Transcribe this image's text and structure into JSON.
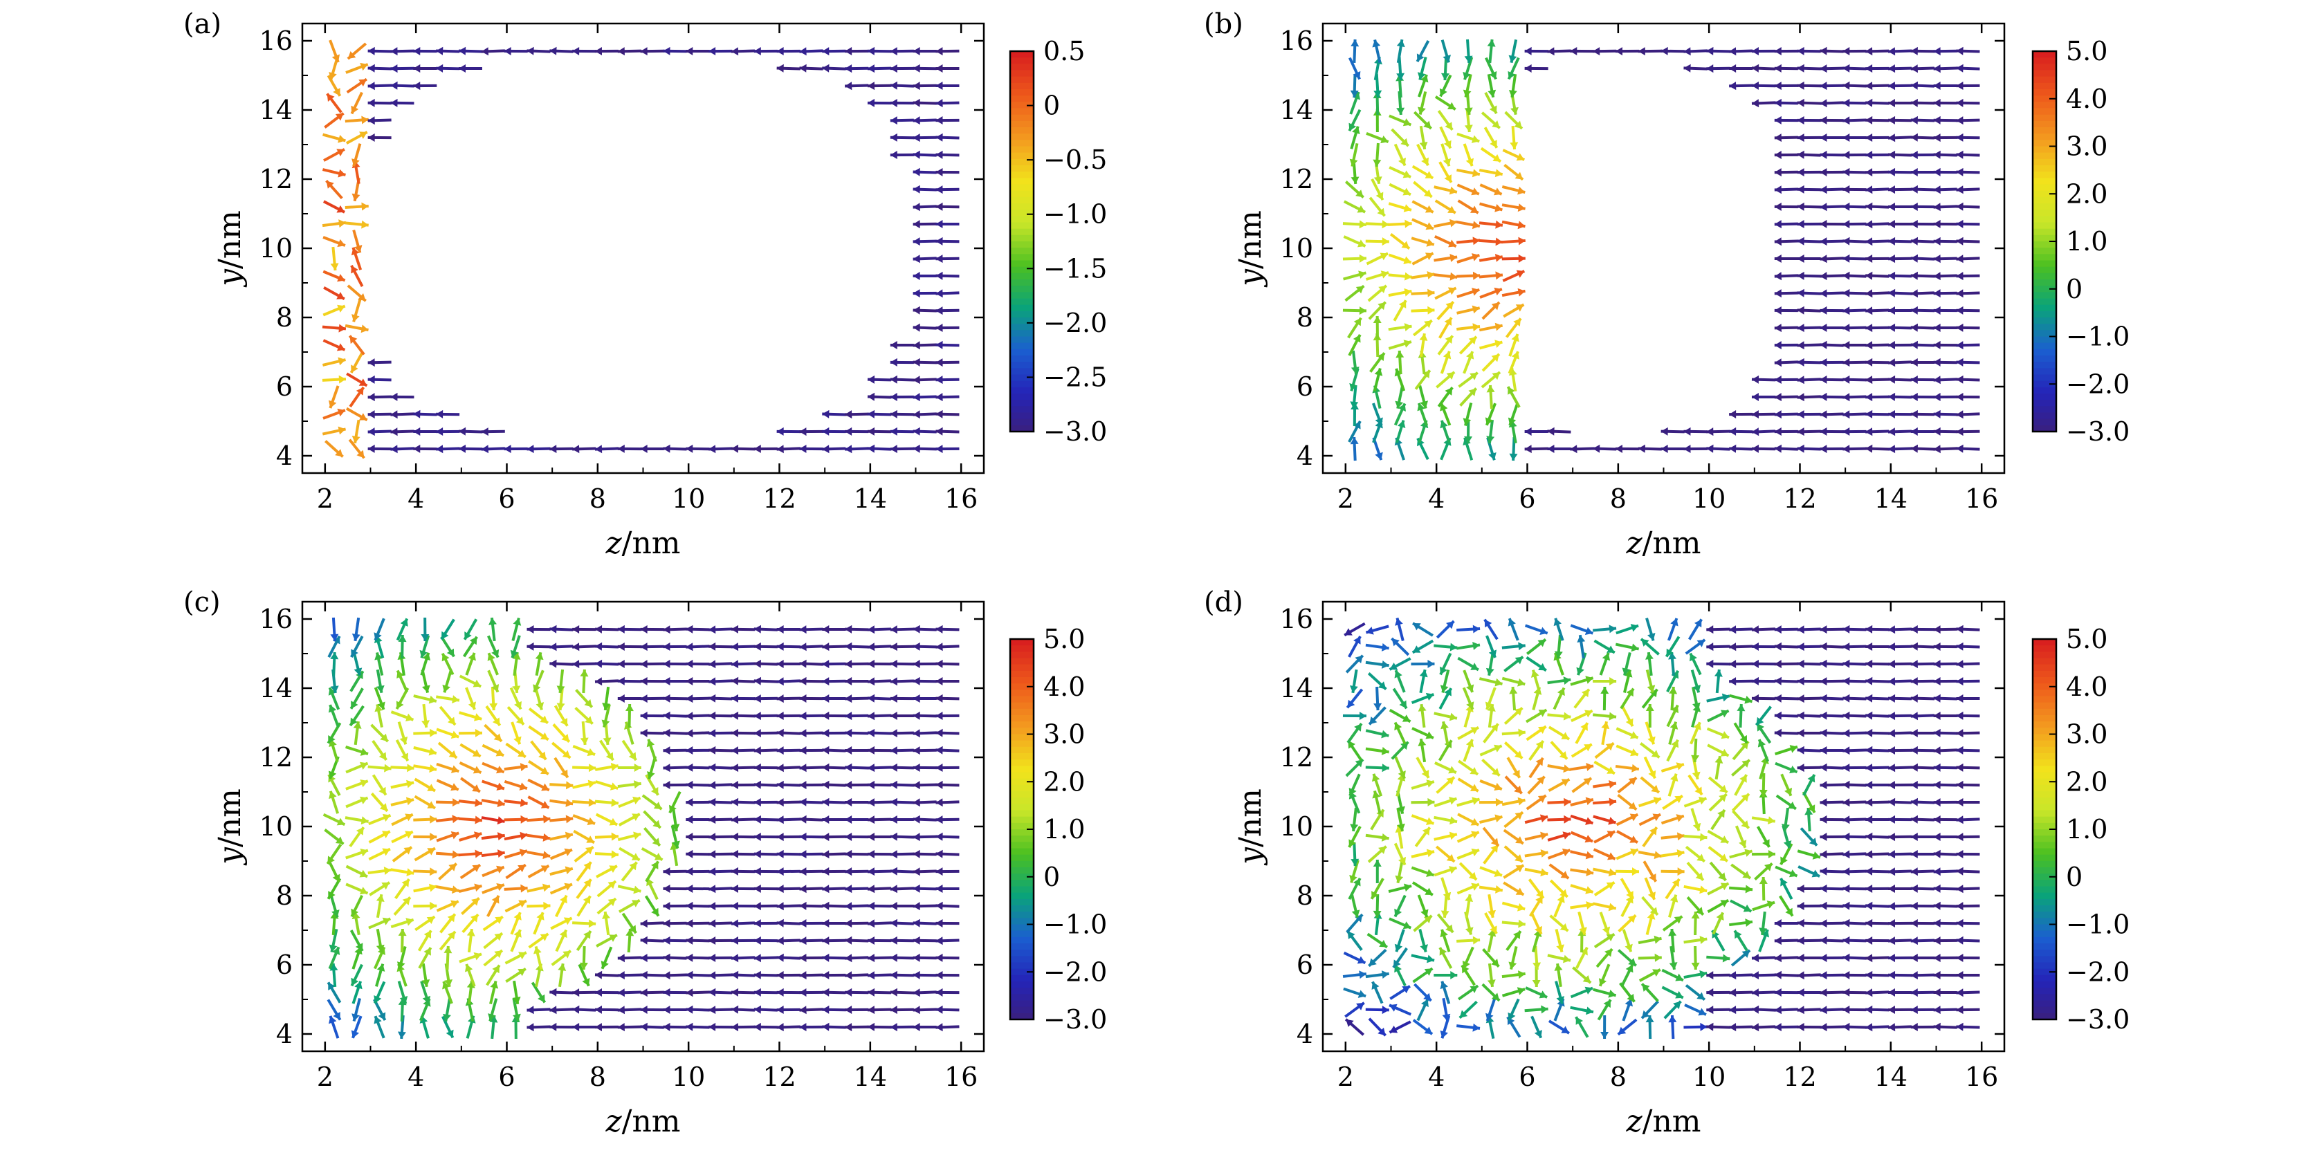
{
  "figure": {
    "colormap": [
      "#3b1f7a",
      "#2424b8",
      "#1b5fd0",
      "#0aa37a",
      "#4cc021",
      "#c8e629",
      "#f2e21c",
      "#f39a1f",
      "#ee5a1b",
      "#d9201f"
    ]
  },
  "chart_data": [
    {
      "panel": "(a)",
      "type": "quiver",
      "xlabel_var": "z",
      "xlabel_unit": "/nm",
      "ylabel_var": "y",
      "ylabel_unit": "/nm",
      "xlim": [
        1.5,
        16.5
      ],
      "ylim": [
        3.5,
        16.5
      ],
      "xticks": [
        2,
        4,
        6,
        8,
        10,
        12,
        14,
        16
      ],
      "yticks": [
        4,
        6,
        8,
        10,
        12,
        14,
        16
      ],
      "colorbar": {
        "range": [
          -3.0,
          0.5
        ],
        "ticks": [
          0.5,
          0,
          -0.5,
          -1.0,
          -1.5,
          -2.0,
          -2.5,
          -3.0
        ],
        "tick_labels": [
          "0.5",
          "0",
          "−0.5",
          "−1.0",
          "−1.5",
          "−2.0",
          "−2.5",
          "−3.0"
        ]
      },
      "hole": {
        "shape": "rounded",
        "x_range": [
          3.0,
          14.5
        ],
        "y_range": [
          4.8,
          15.2
        ]
      },
      "pattern": "uniform -z alignment outside hole; yellow-orange tilted spins at z≈2-3 nm edge"
    },
    {
      "panel": "(b)",
      "type": "quiver",
      "xlabel_var": "z",
      "xlabel_unit": "/nm",
      "ylabel_var": "y",
      "ylabel_unit": "/nm",
      "xlim": [
        1.5,
        16.5
      ],
      "ylim": [
        3.5,
        16.5
      ],
      "xticks": [
        2,
        4,
        6,
        8,
        10,
        12,
        14,
        16
      ],
      "yticks": [
        4,
        6,
        8,
        10,
        12,
        14,
        16
      ],
      "colorbar": {
        "range": [
          -3.0,
          5.0
        ],
        "ticks": [
          5.0,
          4.0,
          3.0,
          2.0,
          1.0,
          0,
          -1.0,
          -2.0,
          -3.0
        ],
        "tick_labels": [
          "5.0",
          "4.0",
          "3.0",
          "2.0",
          "1.0",
          "0",
          "−1.0",
          "−2.0",
          "−3.0"
        ]
      },
      "hole": {
        "shape": "rounded",
        "x_range": [
          6.0,
          12.0
        ],
        "y_range": [
          4.8,
          15.2
        ]
      },
      "pattern": "reversed domain (+z, red-yellow core) for z<6 nm; -z alignment beyond the hole"
    },
    {
      "panel": "(c)",
      "type": "quiver",
      "xlabel_var": "z",
      "xlabel_unit": "/nm",
      "ylabel_var": "y",
      "ylabel_unit": "/nm",
      "xlim": [
        1.5,
        16.5
      ],
      "ylim": [
        3.5,
        16.5
      ],
      "xticks": [
        2,
        4,
        6,
        8,
        10,
        12,
        14,
        16
      ],
      "yticks": [
        4,
        6,
        8,
        10,
        12,
        14,
        16
      ],
      "colorbar": {
        "range": [
          -3.0,
          5.0
        ],
        "ticks": [
          5.0,
          4.0,
          3.0,
          2.0,
          1.0,
          0,
          -1.0,
          -2.0,
          -3.0
        ],
        "tick_labels": [
          "5.0",
          "4.0",
          "3.0",
          "2.0",
          "1.0",
          "0",
          "−1.0",
          "−2.0",
          "−3.0"
        ]
      },
      "domain": {
        "center": [
          5.8,
          10.0
        ],
        "radius_z": 3.7,
        "radius_y": 4.6
      },
      "pattern": "reversed domain expanding to z≈9.5 nm, no hole remaining"
    },
    {
      "panel": "(d)",
      "type": "quiver",
      "xlabel_var": "z",
      "xlabel_unit": "/nm",
      "ylabel_var": "y",
      "ylabel_unit": "/nm",
      "xlim": [
        1.5,
        16.5
      ],
      "ylim": [
        3.5,
        16.5
      ],
      "xticks": [
        2,
        4,
        6,
        8,
        10,
        12,
        14,
        16
      ],
      "yticks": [
        4,
        6,
        8,
        10,
        12,
        14,
        16
      ],
      "colorbar": {
        "range": [
          -3.0,
          5.0
        ],
        "ticks": [
          5.0,
          4.0,
          3.0,
          2.0,
          1.0,
          0,
          -1.0,
          -2.0,
          -3.0
        ],
        "tick_labels": [
          "5.0",
          "4.0",
          "3.0",
          "2.0",
          "1.0",
          "0",
          "−1.0",
          "−2.0",
          "−3.0"
        ]
      },
      "vortices": [
        [
          7.2,
          14.5
        ],
        [
          9.6,
          13.6
        ],
        [
          7.9,
          5.8
        ],
        [
          3.2,
          13.4
        ],
        [
          3.0,
          5.6
        ]
      ],
      "pattern": "turbulent reversed domain reaching z≈12 nm with vortex structures"
    }
  ]
}
